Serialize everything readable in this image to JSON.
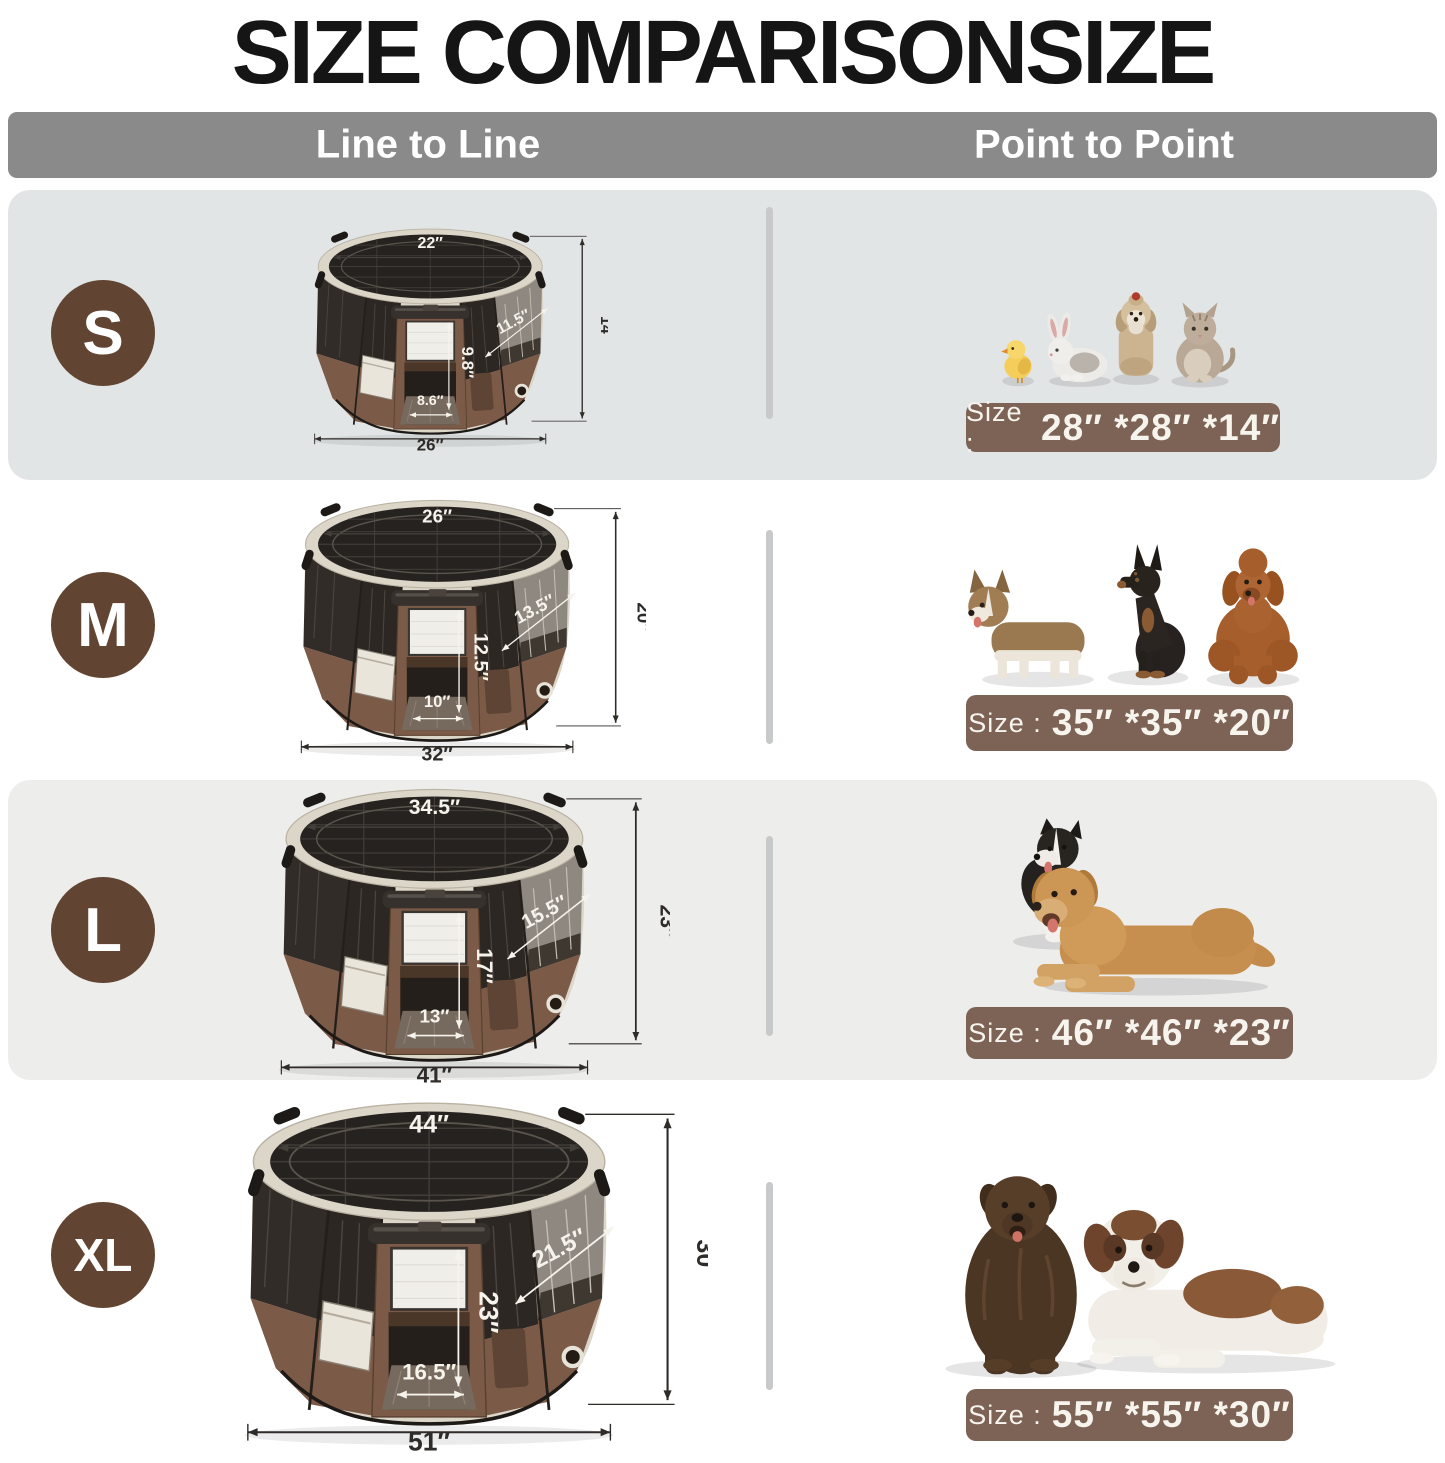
{
  "title": "SIZE COMPARISONSIZE",
  "columns": {
    "left": "Line to Line",
    "right": "Point to Point"
  },
  "size_label_prefix": "Size :",
  "colors": {
    "header_bg": "#8a8a8a",
    "header_text": "#ffffff",
    "row_bg_gray": "#e2e5e6",
    "row_bg_gray2": "#ededec",
    "row_bg_white": "#ffffff",
    "badge_bg": "#614431",
    "size_box_bg": "#7d6355",
    "size_box_text": "#f7f4ee",
    "divider": "#c7c9ca",
    "pen_brown": "#7c5a48",
    "pen_cream": "#dcd6c8",
    "pen_mesh_dark": "#2c2723",
    "pen_window": "#efeee9"
  },
  "rows": [
    {
      "badge": "S",
      "pen_dimensions": {
        "top_width": "22″",
        "panel_width": "11.5″",
        "inner_height": "9.8″",
        "door_width": "8.6″",
        "base_width": "26″",
        "height": "14″"
      },
      "size_value": "28″ *28″ *14″",
      "pets": [
        "chick",
        "rabbit",
        "shih-tzu",
        "kitten"
      ]
    },
    {
      "badge": "M",
      "pen_dimensions": {
        "top_width": "26″",
        "panel_width": "13.5″",
        "inner_height": "12.5″",
        "door_width": "10″",
        "base_width": "32″",
        "height": "20″"
      },
      "size_value": "35″ *35″ *20″",
      "pets": [
        "corgi",
        "miniature-pinscher",
        "poodle"
      ]
    },
    {
      "badge": "L",
      "pen_dimensions": {
        "top_width": "34.5″",
        "panel_width": "15.5″",
        "inner_height": "17″",
        "door_width": "13″",
        "base_width": "41″",
        "height": "23″"
      },
      "size_value": "46″ *46″ *23″",
      "pets": [
        "border-collie",
        "golden-retriever"
      ]
    },
    {
      "badge": "XL",
      "pen_dimensions": {
        "top_width": "44″",
        "panel_width": "21.5″",
        "inner_height": "23″",
        "door_width": "16.5″",
        "base_width": "51″",
        "height": "30″"
      },
      "size_value": "55″ *55″ *30″",
      "pets": [
        "newfoundland",
        "saint-bernard"
      ]
    }
  ]
}
